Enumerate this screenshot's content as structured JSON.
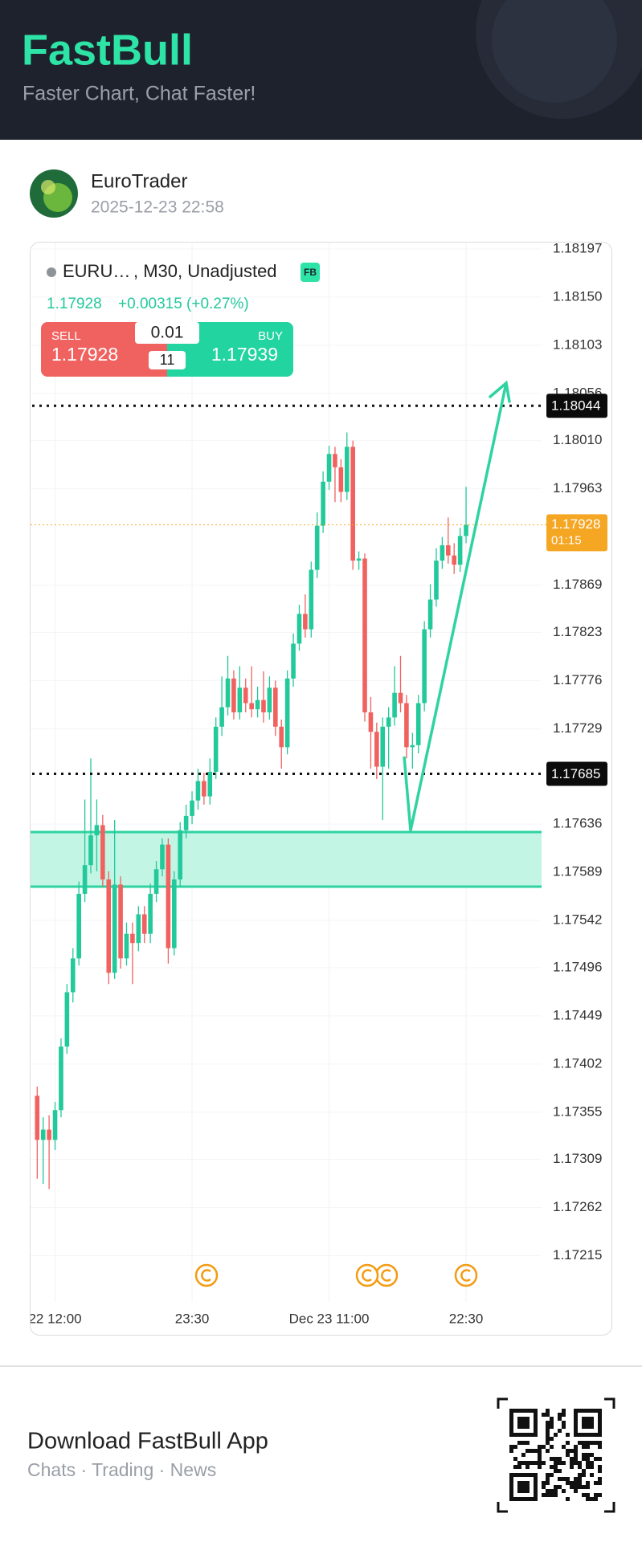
{
  "header": {
    "title": "FastBull",
    "subtitle": "Faster Chart, Chat Faster!"
  },
  "post": {
    "author": "EuroTrader",
    "time": "2025-12-23 22:58"
  },
  "chart_header": {
    "symbol": "EURU…",
    "settings": ", M30, Unadjusted",
    "badge": "FB",
    "change": "+0.00315 (+0.27%)"
  },
  "trade": {
    "sell_label": "SELL",
    "sell": 1.17928,
    "buy_label": "BUY",
    "buy": 1.17939,
    "lot": 0.01,
    "spread": 11
  },
  "chart_data": {
    "type": "candlestick",
    "categories": [
      null,
      null,
      null,
      "22 12:00",
      null,
      null,
      null,
      null,
      null,
      null,
      null,
      null,
      null,
      null,
      null,
      null,
      null,
      null,
      null,
      null,
      null,
      null,
      null,
      null,
      null,
      null,
      "23:30",
      null,
      null,
      null,
      null,
      null,
      null,
      null,
      null,
      null,
      null,
      null,
      null,
      null,
      null,
      null,
      null,
      null,
      null,
      null,
      null,
      null,
      null,
      "Dec 23 11:00",
      null,
      null,
      null,
      null,
      null,
      null,
      null,
      null,
      null,
      null,
      null,
      null,
      null,
      null,
      null,
      null,
      null,
      null,
      null,
      null,
      null,
      null,
      "22:30"
    ],
    "open": [
      1.17371,
      1.17328,
      1.17338,
      1.17328,
      1.17357,
      1.17419,
      1.17472,
      1.17505,
      1.17568,
      1.17596,
      1.17625,
      1.17635,
      1.17582,
      1.17491,
      1.17577,
      1.17505,
      1.17529,
      1.1752,
      1.17548,
      1.17529,
      1.17568,
      1.17592,
      1.17616,
      1.17515,
      1.17582,
      1.1763,
      1.17644,
      1.17659,
      1.17678,
      1.17663,
      1.17687,
      1.17731,
      1.1775,
      1.17778,
      1.17745,
      1.17769,
      1.17754,
      1.17748,
      1.17757,
      1.17745,
      1.17769,
      1.17731,
      1.17711,
      1.17778,
      1.17812,
      1.17841,
      1.17826,
      1.17884,
      1.17927,
      1.1797,
      1.17997,
      1.17984,
      1.1796,
      1.18004,
      1.17893,
      1.17895,
      1.17745,
      1.17726,
      1.17692,
      1.17731,
      1.1774,
      1.17764,
      1.17754,
      1.17711,
      1.17713,
      1.17754,
      1.17826,
      1.17855,
      1.17893,
      1.17908,
      1.17898,
      1.17889,
      1.17917
    ],
    "high": [
      1.1738,
      1.1735,
      1.17352,
      1.17365,
      1.17427,
      1.1748,
      1.17515,
      1.1758,
      1.1766,
      1.177,
      1.1766,
      1.17645,
      1.1759,
      1.1764,
      1.17585,
      1.1754,
      1.1754,
      1.17556,
      1.17556,
      1.17578,
      1.176,
      1.17622,
      1.17622,
      1.1759,
      1.17638,
      1.17655,
      1.17668,
      1.1769,
      1.17686,
      1.177,
      1.1774,
      1.1778,
      1.178,
      1.17786,
      1.1779,
      1.17778,
      1.1779,
      1.1777,
      1.17785,
      1.1778,
      1.17776,
      1.17738,
      1.17786,
      1.17822,
      1.1785,
      1.1786,
      1.17892,
      1.1794,
      1.1798,
      1.18005,
      1.18004,
      1.17992,
      1.18018,
      1.1801,
      1.17902,
      1.179,
      1.1776,
      1.17735,
      1.1774,
      1.1775,
      1.1779,
      1.178,
      1.17762,
      1.17725,
      1.17762,
      1.17834,
      1.1787,
      1.17905,
      1.17916,
      1.17935,
      1.1791,
      1.17925,
      1.17965
    ],
    "low": [
      1.1729,
      1.17285,
      1.1728,
      1.17318,
      1.1735,
      1.17412,
      1.17462,
      1.17498,
      1.1756,
      1.17588,
      1.1759,
      1.17575,
      1.1748,
      1.17485,
      1.17495,
      1.17498,
      1.1748,
      1.17512,
      1.1752,
      1.1752,
      1.1756,
      1.17585,
      1.175,
      1.17508,
      1.17575,
      1.17622,
      1.17636,
      1.1765,
      1.17655,
      1.17655,
      1.1768,
      1.17722,
      1.17742,
      1.17738,
      1.17738,
      1.17745,
      1.1774,
      1.1774,
      1.17735,
      1.17738,
      1.17722,
      1.1769,
      1.17704,
      1.1777,
      1.17805,
      1.17818,
      1.17818,
      1.17876,
      1.1792,
      1.17962,
      1.1795,
      1.1795,
      1.17952,
      1.17884,
      1.17884,
      1.17736,
      1.1769,
      1.1768,
      1.1764,
      1.1769,
      1.17732,
      1.17745,
      1.177,
      1.1769,
      1.17705,
      1.17746,
      1.17818,
      1.17848,
      1.17885,
      1.1789,
      1.1788,
      1.17882,
      1.1791
    ],
    "close": [
      1.17328,
      1.17338,
      1.17328,
      1.17357,
      1.17419,
      1.17472,
      1.17505,
      1.17568,
      1.17596,
      1.17625,
      1.17635,
      1.17582,
      1.17491,
      1.17577,
      1.17505,
      1.17529,
      1.1752,
      1.17548,
      1.17529,
      1.17568,
      1.17592,
      1.17616,
      1.17515,
      1.17582,
      1.1763,
      1.17644,
      1.17659,
      1.17678,
      1.17663,
      1.17687,
      1.17731,
      1.1775,
      1.17778,
      1.17745,
      1.17769,
      1.17754,
      1.17748,
      1.17757,
      1.17745,
      1.17769,
      1.17731,
      1.17711,
      1.17778,
      1.17812,
      1.17841,
      1.17826,
      1.17884,
      1.17927,
      1.1797,
      1.17997,
      1.17984,
      1.1796,
      1.18004,
      1.17893,
      1.17895,
      1.17745,
      1.17726,
      1.17692,
      1.17731,
      1.1774,
      1.17764,
      1.17754,
      1.17711,
      1.17713,
      1.17754,
      1.17826,
      1.17855,
      1.17893,
      1.17908,
      1.17898,
      1.17889,
      1.17917,
      1.17928
    ],
    "up_color": "#22c99a",
    "down_color": "#f0625f",
    "ylim": [
      1.1717,
      1.18204
    ],
    "yticks": [
      1.18197,
      {
        "value": 1.1815,
        "label": "1.18150"
      },
      1.18103,
      1.18056,
      {
        "value": 1.1801,
        "label": "1.18010"
      },
      1.17963,
      1.17869,
      1.17823,
      1.17776,
      1.17729,
      1.17636,
      1.17589,
      1.17542,
      1.17496,
      1.17449,
      1.17402,
      1.17355,
      1.17309,
      1.17262,
      1.17215
    ],
    "grid": true,
    "levels": [
      1.18044,
      1.17685
    ],
    "countdown": "01:15"
  },
  "footer": {
    "title": "Download FastBull App",
    "subtitle": "Chats · Trading · News"
  }
}
